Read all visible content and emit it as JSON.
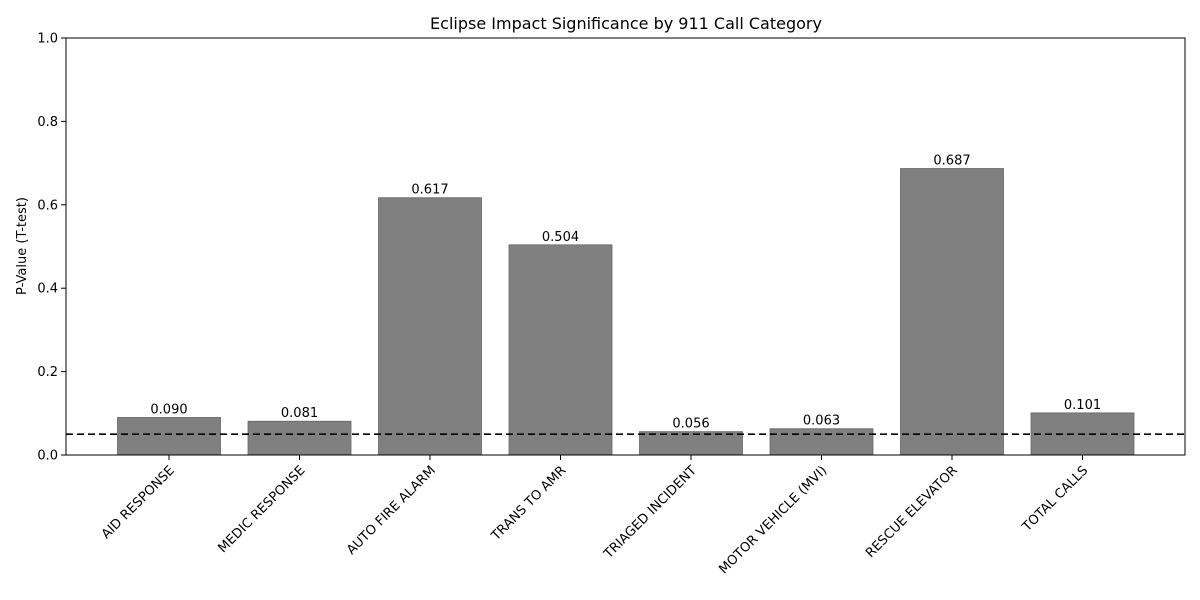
{
  "chart_data": {
    "type": "bar",
    "title": "Eclipse Impact Significance by 911 Call Category",
    "xlabel": "",
    "ylabel": "P-Value (T-test)",
    "ylim": [
      0,
      1.0
    ],
    "yticks": [
      "0.0",
      "0.2",
      "0.4",
      "0.6",
      "0.8",
      "1.0"
    ],
    "ytick_values": [
      0.0,
      0.2,
      0.4,
      0.6,
      0.8,
      1.0
    ],
    "categories": [
      "AID RESPONSE",
      "MEDIC RESPONSE",
      "AUTO FIRE ALARM",
      "TRANS TO AMR",
      "TRIAGED INCIDENT",
      "MOTOR VEHICLE (MVI)",
      "RESCUE ELEVATOR",
      "TOTAL CALLS"
    ],
    "values": [
      0.09,
      0.081,
      0.617,
      0.504,
      0.056,
      0.063,
      0.687,
      0.101
    ],
    "value_labels": [
      "0.090",
      "0.081",
      "0.617",
      "0.504",
      "0.056",
      "0.063",
      "0.687",
      "0.101"
    ],
    "reference_line": 0.05,
    "reference_line_style": "dashed",
    "bar_color": "#808080",
    "bar_edge_color": "#666666",
    "grid": false,
    "legend": "none"
  }
}
